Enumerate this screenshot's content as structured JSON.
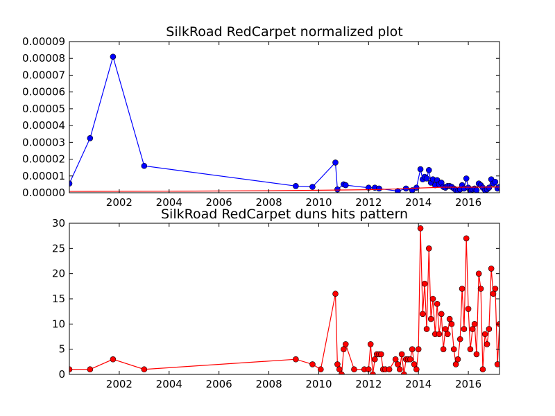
{
  "chart_data": [
    {
      "type": "line",
      "title": "SilkRoad RedCarpet normalized plot",
      "xlabel": "",
      "ylabel": "",
      "xlim": [
        2000.0,
        2017.25
      ],
      "ylim": [
        0,
        9e-05
      ],
      "x_ticks": [
        2002,
        2004,
        2006,
        2008,
        2010,
        2012,
        2014,
        2016
      ],
      "x_tick_labels": [
        "2002",
        "2004",
        "2006",
        "2008",
        "2010",
        "2012",
        "2014",
        "2016"
      ],
      "y_ticks": [
        0,
        1e-05,
        2e-05,
        3e-05,
        4e-05,
        5e-05,
        6e-05,
        7e-05,
        8e-05,
        9e-05
      ],
      "y_tick_labels": [
        "0.00000",
        "0.00001",
        "0.00002",
        "0.00003",
        "0.00004",
        "0.00005",
        "0.00006",
        "0.00007",
        "0.00008",
        "0.00009"
      ],
      "grid": false,
      "legend": "none",
      "series": [
        {
          "color": "#0000ff",
          "marker": "circle",
          "points": [
            [
              2000.0,
              5.5e-06
            ],
            [
              2000.83,
              3.25e-05
            ],
            [
              2001.75,
              8.1e-05
            ],
            [
              2003.0,
              1.6e-05
            ],
            [
              2009.08,
              4e-06
            ],
            [
              2009.75,
              3.5e-06
            ],
            [
              2010.67,
              1.8e-05
            ],
            [
              2010.75,
              2e-06
            ],
            [
              2011.0,
              5e-06
            ],
            [
              2011.08,
              4.5e-06
            ],
            [
              2012.0,
              3e-06
            ],
            [
              2012.25,
              3e-06
            ],
            [
              2012.42,
              2.5e-06
            ],
            [
              2013.17,
              1e-06
            ],
            [
              2013.5,
              2.5e-06
            ],
            [
              2013.75,
              1.5e-06
            ],
            [
              2013.92,
              3e-06
            ],
            [
              2014.08,
              1.4e-05
            ],
            [
              2014.17,
              8e-06
            ],
            [
              2014.25,
              9.5e-06
            ],
            [
              2014.33,
              8.5e-06
            ],
            [
              2014.42,
              1.35e-05
            ],
            [
              2014.5,
              6e-06
            ],
            [
              2014.58,
              8e-06
            ],
            [
              2014.67,
              4.5e-06
            ],
            [
              2014.75,
              7.5e-06
            ],
            [
              2014.83,
              5e-06
            ],
            [
              2014.92,
              6e-06
            ],
            [
              2015.0,
              3.5e-06
            ],
            [
              2015.08,
              3e-06
            ],
            [
              2015.17,
              4e-06
            ],
            [
              2015.25,
              4e-06
            ],
            [
              2015.33,
              3.5e-06
            ],
            [
              2015.42,
              2.5e-06
            ],
            [
              2015.5,
              1.5e-06
            ],
            [
              2015.58,
              1e-06
            ],
            [
              2015.67,
              2e-06
            ],
            [
              2015.75,
              4.5e-06
            ],
            [
              2015.83,
              2.5e-06
            ],
            [
              2015.92,
              8.5e-06
            ],
            [
              2016.0,
              3e-06
            ],
            [
              2016.08,
              1e-06
            ],
            [
              2016.17,
              2e-06
            ],
            [
              2016.25,
              2.5e-06
            ],
            [
              2016.33,
              1.5e-06
            ],
            [
              2016.42,
              5.5e-06
            ],
            [
              2016.5,
              4.5e-06
            ],
            [
              2016.58,
              3e-06
            ],
            [
              2016.67,
              1.5e-06
            ],
            [
              2016.75,
              2e-06
            ],
            [
              2016.83,
              3e-06
            ],
            [
              2016.92,
              8e-06
            ],
            [
              2017.0,
              5.5e-06
            ],
            [
              2017.08,
              6.5e-06
            ],
            [
              2017.17,
              2.5e-06
            ],
            [
              2017.25,
              3.5e-06
            ]
          ]
        },
        {
          "color": "#ff0000",
          "marker": "none",
          "points": [
            [
              2000.0,
              8e-07
            ],
            [
              2004.0,
              9e-07
            ],
            [
              2008.0,
              1.2e-06
            ],
            [
              2010.0,
              1.5e-06
            ],
            [
              2012.0,
              1.8e-06
            ],
            [
              2013.0,
              2.2e-06
            ],
            [
              2014.0,
              2.8e-06
            ],
            [
              2015.0,
              3.3e-06
            ],
            [
              2016.0,
              3.3e-06
            ],
            [
              2017.25,
              3.4e-06
            ]
          ]
        }
      ]
    },
    {
      "type": "line",
      "title": "SilkRoad RedCarpet duns hits pattern",
      "xlabel": "",
      "ylabel": "",
      "xlim": [
        2000.0,
        2017.25
      ],
      "ylim": [
        0,
        30
      ],
      "x_ticks": [
        2002,
        2004,
        2006,
        2008,
        2010,
        2012,
        2014,
        2016
      ],
      "x_tick_labels": [
        "2002",
        "2004",
        "2006",
        "2008",
        "2010",
        "2012",
        "2014",
        "2016"
      ],
      "y_ticks": [
        0,
        5,
        10,
        15,
        20,
        25,
        30
      ],
      "y_tick_labels": [
        "0",
        "5",
        "10",
        "15",
        "20",
        "25",
        "30"
      ],
      "grid": false,
      "legend": "none",
      "series": [
        {
          "color": "#ff0000",
          "marker": "circle",
          "points": [
            [
              2000.0,
              1
            ],
            [
              2000.83,
              1
            ],
            [
              2001.75,
              3
            ],
            [
              2003.0,
              1
            ],
            [
              2009.08,
              3
            ],
            [
              2009.75,
              2
            ],
            [
              2010.08,
              1
            ],
            [
              2010.67,
              16
            ],
            [
              2010.75,
              2
            ],
            [
              2010.83,
              1
            ],
            [
              2010.92,
              0
            ],
            [
              2011.0,
              5
            ],
            [
              2011.08,
              6
            ],
            [
              2011.42,
              1
            ],
            [
              2011.83,
              1
            ],
            [
              2012.0,
              1
            ],
            [
              2012.08,
              6
            ],
            [
              2012.17,
              0
            ],
            [
              2012.25,
              3
            ],
            [
              2012.33,
              4
            ],
            [
              2012.42,
              4
            ],
            [
              2012.5,
              4
            ],
            [
              2012.58,
              1
            ],
            [
              2012.67,
              1
            ],
            [
              2012.83,
              1
            ],
            [
              2013.08,
              3
            ],
            [
              2013.17,
              2
            ],
            [
              2013.25,
              1
            ],
            [
              2013.33,
              4
            ],
            [
              2013.42,
              0
            ],
            [
              2013.5,
              3
            ],
            [
              2013.58,
              3
            ],
            [
              2013.67,
              3
            ],
            [
              2013.75,
              5
            ],
            [
              2013.83,
              2
            ],
            [
              2013.92,
              1
            ],
            [
              2014.0,
              5
            ],
            [
              2014.08,
              29
            ],
            [
              2014.17,
              12
            ],
            [
              2014.25,
              18
            ],
            [
              2014.33,
              9
            ],
            [
              2014.42,
              25
            ],
            [
              2014.5,
              11
            ],
            [
              2014.58,
              15
            ],
            [
              2014.67,
              8
            ],
            [
              2014.75,
              14
            ],
            [
              2014.83,
              8
            ],
            [
              2014.92,
              12
            ],
            [
              2015.0,
              5
            ],
            [
              2015.08,
              9
            ],
            [
              2015.17,
              8
            ],
            [
              2015.25,
              11
            ],
            [
              2015.33,
              10
            ],
            [
              2015.42,
              5
            ],
            [
              2015.5,
              2
            ],
            [
              2015.58,
              3
            ],
            [
              2015.67,
              7
            ],
            [
              2015.75,
              17
            ],
            [
              2015.83,
              9
            ],
            [
              2015.92,
              27
            ],
            [
              2016.0,
              13
            ],
            [
              2016.08,
              5
            ],
            [
              2016.17,
              9
            ],
            [
              2016.25,
              10
            ],
            [
              2016.33,
              4
            ],
            [
              2016.42,
              20
            ],
            [
              2016.5,
              17
            ],
            [
              2016.58,
              1
            ],
            [
              2016.67,
              8
            ],
            [
              2016.75,
              6
            ],
            [
              2016.83,
              9
            ],
            [
              2016.92,
              21
            ],
            [
              2017.0,
              16
            ],
            [
              2017.08,
              17
            ],
            [
              2017.17,
              2
            ],
            [
              2017.25,
              10
            ]
          ]
        }
      ]
    }
  ]
}
